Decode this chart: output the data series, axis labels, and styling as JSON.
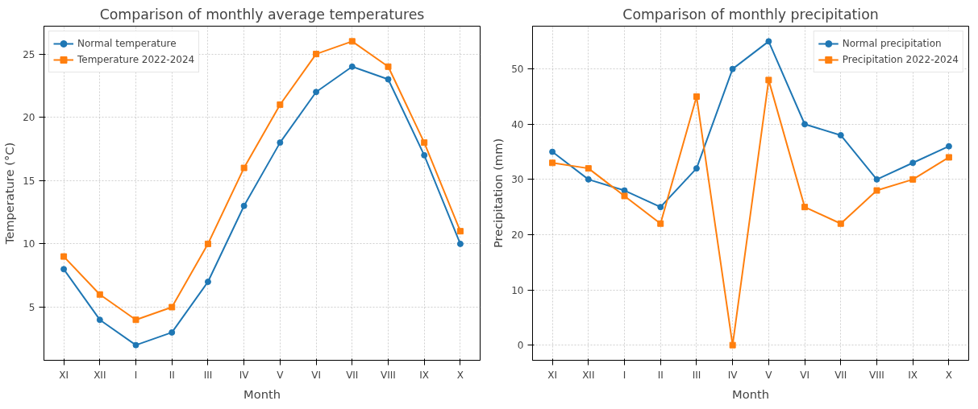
{
  "chart_data": [
    {
      "type": "line",
      "title": "Comparison of monthly average temperatures",
      "xlabel": "Month",
      "ylabel": "Temperature (°C)",
      "categories": [
        "XI",
        "XII",
        "I",
        "II",
        "III",
        "IV",
        "V",
        "VI",
        "VII",
        "VIII",
        "IX",
        "X"
      ],
      "ylim": [
        0.8,
        27.2
      ],
      "yticks": [
        5,
        10,
        15,
        20,
        25
      ],
      "grid": true,
      "legend": "top left",
      "series": [
        {
          "name": "Normal temperature",
          "color": "#1f77b4",
          "marker": "circle",
          "values": [
            8,
            4,
            2,
            3,
            7,
            13,
            18,
            22,
            24,
            23,
            17,
            10
          ]
        },
        {
          "name": "Temperature 2022-2024",
          "color": "#ff7f0e",
          "marker": "square",
          "values": [
            9,
            6,
            4,
            5,
            10,
            16,
            21,
            25,
            26,
            24,
            18,
            11
          ]
        }
      ]
    },
    {
      "type": "line",
      "title": "Comparison of monthly precipitation",
      "xlabel": "Month",
      "ylabel": "Precipitation (mm)",
      "categories": [
        "XI",
        "XII",
        "I",
        "II",
        "III",
        "IV",
        "V",
        "VI",
        "VII",
        "VIII",
        "IX",
        "X"
      ],
      "ylim": [
        -2.75,
        57.75
      ],
      "yticks": [
        0,
        10,
        20,
        30,
        40,
        50
      ],
      "grid": true,
      "legend": "top right",
      "series": [
        {
          "name": "Normal precipitation",
          "color": "#1f77b4",
          "marker": "circle",
          "values": [
            35,
            30,
            28,
            25,
            32,
            50,
            55,
            40,
            38,
            30,
            33,
            36
          ]
        },
        {
          "name": "Precipitation 2022-2024",
          "color": "#ff7f0e",
          "marker": "square",
          "values": [
            33,
            32,
            27,
            22,
            45,
            0,
            48,
            25,
            22,
            28,
            30,
            34
          ]
        }
      ]
    }
  ]
}
